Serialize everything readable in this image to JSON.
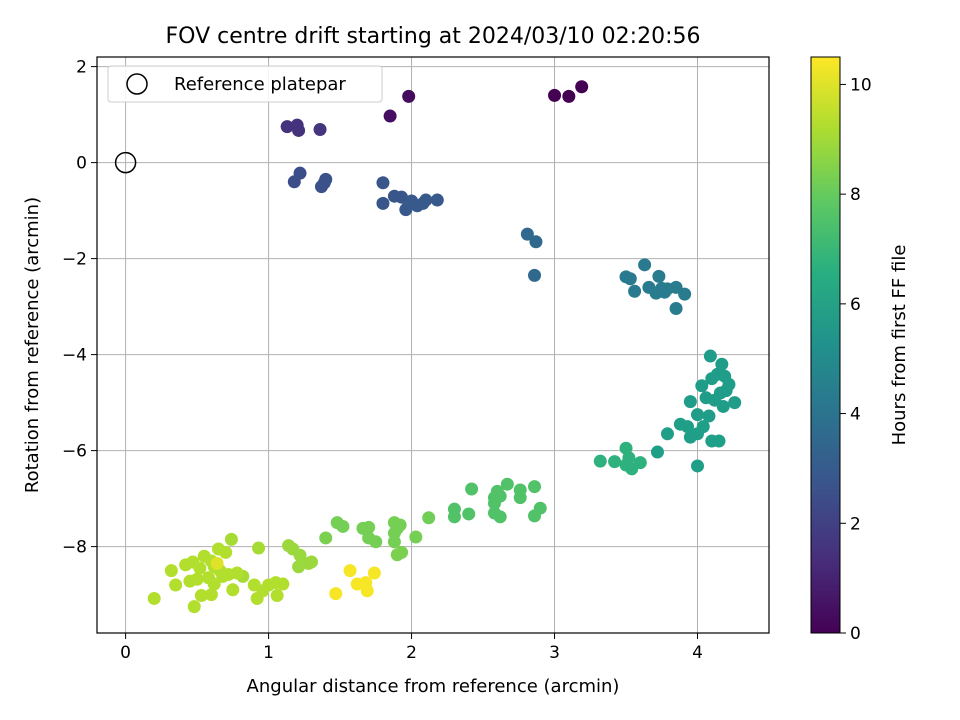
{
  "chart_data": {
    "type": "scatter",
    "title": "FOV centre drift starting at 2024/03/10 02:20:56",
    "xlabel": "Angular distance from reference (arcmin)",
    "ylabel": "Rotation from reference (arcmin)",
    "xlim": [
      -0.2,
      4.5
    ],
    "ylim": [
      -9.8,
      2.2
    ],
    "xticks": [
      0,
      1,
      2,
      3,
      4
    ],
    "yticks": [
      -8,
      -6,
      -4,
      -2,
      0,
      2
    ],
    "grid": true,
    "legend": {
      "position": "upper left",
      "entries": [
        "Reference platepar"
      ]
    },
    "reference_point": {
      "x": 0,
      "y": 0
    },
    "colorbar": {
      "label": "Hours from first FF file",
      "range": [
        0,
        10.5
      ],
      "ticks": [
        0,
        2,
        4,
        6,
        8,
        10
      ],
      "colormap": "viridis"
    },
    "points": [
      {
        "x": 1.98,
        "y": 1.38,
        "h": 0.3
      },
      {
        "x": 1.85,
        "y": 0.97,
        "h": 0.4
      },
      {
        "x": 3.0,
        "y": 1.4,
        "h": 0.0
      },
      {
        "x": 3.1,
        "y": 1.38,
        "h": 0.0
      },
      {
        "x": 3.19,
        "y": 1.58,
        "h": 0.0
      },
      {
        "x": 1.13,
        "y": 0.75,
        "h": 1.5
      },
      {
        "x": 1.2,
        "y": 0.78,
        "h": 1.5
      },
      {
        "x": 1.21,
        "y": 0.67,
        "h": 1.5
      },
      {
        "x": 1.36,
        "y": 0.69,
        "h": 1.6
      },
      {
        "x": 1.18,
        "y": -0.4,
        "h": 2.5
      },
      {
        "x": 1.22,
        "y": -0.22,
        "h": 2.5
      },
      {
        "x": 1.37,
        "y": -0.5,
        "h": 2.6
      },
      {
        "x": 1.39,
        "y": -0.42,
        "h": 2.6
      },
      {
        "x": 1.4,
        "y": -0.35,
        "h": 2.6
      },
      {
        "x": 1.8,
        "y": -0.42,
        "h": 2.8
      },
      {
        "x": 1.8,
        "y": -0.85,
        "h": 2.8
      },
      {
        "x": 1.88,
        "y": -0.7,
        "h": 2.8
      },
      {
        "x": 1.93,
        "y": -0.72,
        "h": 2.8
      },
      {
        "x": 1.96,
        "y": -0.98,
        "h": 2.9
      },
      {
        "x": 1.98,
        "y": -0.88,
        "h": 2.9
      },
      {
        "x": 2.0,
        "y": -0.8,
        "h": 2.9
      },
      {
        "x": 2.04,
        "y": -0.9,
        "h": 2.9
      },
      {
        "x": 2.08,
        "y": -0.85,
        "h": 2.9
      },
      {
        "x": 2.1,
        "y": -0.78,
        "h": 2.9
      },
      {
        "x": 2.18,
        "y": -0.78,
        "h": 2.9
      },
      {
        "x": 2.81,
        "y": -1.49,
        "h": 3.5
      },
      {
        "x": 2.87,
        "y": -1.65,
        "h": 3.5
      },
      {
        "x": 2.86,
        "y": -2.35,
        "h": 3.5
      },
      {
        "x": 3.5,
        "y": -2.38,
        "h": 4.3
      },
      {
        "x": 3.53,
        "y": -2.42,
        "h": 4.3
      },
      {
        "x": 3.56,
        "y": -2.68,
        "h": 4.3
      },
      {
        "x": 3.63,
        "y": -2.13,
        "h": 4.3
      },
      {
        "x": 3.66,
        "y": -2.6,
        "h": 4.3
      },
      {
        "x": 3.71,
        "y": -2.72,
        "h": 4.4
      },
      {
        "x": 3.73,
        "y": -2.37,
        "h": 4.4
      },
      {
        "x": 3.75,
        "y": -2.62,
        "h": 4.4
      },
      {
        "x": 3.79,
        "y": -2.63,
        "h": 4.4
      },
      {
        "x": 3.85,
        "y": -2.6,
        "h": 4.4
      },
      {
        "x": 3.85,
        "y": -3.04,
        "h": 4.4
      },
      {
        "x": 3.91,
        "y": -2.74,
        "h": 4.4
      },
      {
        "x": 3.77,
        "y": -2.7,
        "h": 4.4
      },
      {
        "x": 4.09,
        "y": -4.03,
        "h": 5.8
      },
      {
        "x": 4.17,
        "y": -4.2,
        "h": 5.8
      },
      {
        "x": 4.14,
        "y": -4.41,
        "h": 5.8
      },
      {
        "x": 4.19,
        "y": -4.45,
        "h": 5.8
      },
      {
        "x": 4.1,
        "y": -4.5,
        "h": 5.8
      },
      {
        "x": 4.22,
        "y": -4.62,
        "h": 5.8
      },
      {
        "x": 4.03,
        "y": -4.65,
        "h": 5.8
      },
      {
        "x": 4.16,
        "y": -4.8,
        "h": 5.8
      },
      {
        "x": 4.2,
        "y": -4.75,
        "h": 5.8
      },
      {
        "x": 4.06,
        "y": -4.9,
        "h": 5.8
      },
      {
        "x": 4.12,
        "y": -4.95,
        "h": 5.8
      },
      {
        "x": 4.26,
        "y": -5.0,
        "h": 5.8
      },
      {
        "x": 3.95,
        "y": -4.98,
        "h": 5.8
      },
      {
        "x": 4.18,
        "y": -5.08,
        "h": 5.8
      },
      {
        "x": 4.0,
        "y": -5.25,
        "h": 5.8
      },
      {
        "x": 4.08,
        "y": -5.28,
        "h": 5.8
      },
      {
        "x": 3.88,
        "y": -5.45,
        "h": 5.9
      },
      {
        "x": 3.93,
        "y": -5.5,
        "h": 5.9
      },
      {
        "x": 4.04,
        "y": -5.5,
        "h": 5.9
      },
      {
        "x": 3.95,
        "y": -5.72,
        "h": 5.9
      },
      {
        "x": 4.0,
        "y": -5.65,
        "h": 5.9
      },
      {
        "x": 4.1,
        "y": -5.8,
        "h": 5.9
      },
      {
        "x": 4.15,
        "y": -5.8,
        "h": 5.9
      },
      {
        "x": 3.79,
        "y": -5.65,
        "h": 5.9
      },
      {
        "x": 3.72,
        "y": -6.03,
        "h": 5.9
      },
      {
        "x": 4.0,
        "y": -6.32,
        "h": 5.9
      },
      {
        "x": 3.5,
        "y": -5.95,
        "h": 6.7
      },
      {
        "x": 3.52,
        "y": -6.15,
        "h": 6.7
      },
      {
        "x": 3.32,
        "y": -6.22,
        "h": 6.7
      },
      {
        "x": 3.42,
        "y": -6.23,
        "h": 6.7
      },
      {
        "x": 3.5,
        "y": -6.3,
        "h": 6.7
      },
      {
        "x": 3.54,
        "y": -6.38,
        "h": 6.7
      },
      {
        "x": 3.6,
        "y": -6.25,
        "h": 6.7
      },
      {
        "x": 2.42,
        "y": -6.8,
        "h": 7.6
      },
      {
        "x": 2.6,
        "y": -6.85,
        "h": 7.6
      },
      {
        "x": 2.67,
        "y": -6.7,
        "h": 7.6
      },
      {
        "x": 2.76,
        "y": -6.82,
        "h": 7.6
      },
      {
        "x": 2.86,
        "y": -6.75,
        "h": 7.6
      },
      {
        "x": 2.58,
        "y": -6.98,
        "h": 7.6
      },
      {
        "x": 2.62,
        "y": -6.95,
        "h": 7.6
      },
      {
        "x": 2.76,
        "y": -6.98,
        "h": 7.6
      },
      {
        "x": 2.58,
        "y": -7.1,
        "h": 7.6
      },
      {
        "x": 2.3,
        "y": -7.22,
        "h": 7.6
      },
      {
        "x": 2.3,
        "y": -7.38,
        "h": 7.6
      },
      {
        "x": 2.4,
        "y": -7.32,
        "h": 7.6
      },
      {
        "x": 2.58,
        "y": -7.3,
        "h": 7.6
      },
      {
        "x": 2.62,
        "y": -7.38,
        "h": 7.6
      },
      {
        "x": 2.86,
        "y": -7.36,
        "h": 7.6
      },
      {
        "x": 2.9,
        "y": -7.2,
        "h": 7.6
      },
      {
        "x": 2.12,
        "y": -7.4,
        "h": 8.2
      },
      {
        "x": 1.48,
        "y": -7.5,
        "h": 8.3
      },
      {
        "x": 1.52,
        "y": -7.58,
        "h": 8.3
      },
      {
        "x": 1.66,
        "y": -7.62,
        "h": 8.3
      },
      {
        "x": 1.7,
        "y": -7.6,
        "h": 8.3
      },
      {
        "x": 1.88,
        "y": -7.5,
        "h": 8.3
      },
      {
        "x": 1.9,
        "y": -7.62,
        "h": 8.3
      },
      {
        "x": 1.92,
        "y": -7.55,
        "h": 8.3
      },
      {
        "x": 1.88,
        "y": -7.72,
        "h": 8.3
      },
      {
        "x": 1.7,
        "y": -7.82,
        "h": 8.3
      },
      {
        "x": 1.75,
        "y": -7.9,
        "h": 8.3
      },
      {
        "x": 1.88,
        "y": -7.9,
        "h": 8.3
      },
      {
        "x": 2.03,
        "y": -7.8,
        "h": 8.3
      },
      {
        "x": 1.4,
        "y": -7.82,
        "h": 8.4
      },
      {
        "x": 1.9,
        "y": -8.17,
        "h": 8.4
      },
      {
        "x": 1.93,
        "y": -8.12,
        "h": 8.4
      },
      {
        "x": 1.14,
        "y": -7.98,
        "h": 8.9
      },
      {
        "x": 1.17,
        "y": -8.05,
        "h": 8.9
      },
      {
        "x": 1.22,
        "y": -8.18,
        "h": 8.9
      },
      {
        "x": 1.21,
        "y": -8.42,
        "h": 8.9
      },
      {
        "x": 1.28,
        "y": -8.35,
        "h": 8.9
      },
      {
        "x": 1.3,
        "y": -8.32,
        "h": 8.9
      },
      {
        "x": 0.93,
        "y": -8.03,
        "h": 9.1
      },
      {
        "x": 0.74,
        "y": -7.85,
        "h": 9.1
      },
      {
        "x": 0.82,
        "y": -8.62,
        "h": 9.1
      },
      {
        "x": 0.65,
        "y": -8.05,
        "h": 9.3
      },
      {
        "x": 0.7,
        "y": -8.12,
        "h": 9.3
      },
      {
        "x": 0.55,
        "y": -8.2,
        "h": 9.3
      },
      {
        "x": 0.47,
        "y": -8.32,
        "h": 9.3
      },
      {
        "x": 0.42,
        "y": -8.38,
        "h": 9.3
      },
      {
        "x": 0.6,
        "y": -8.3,
        "h": 9.3
      },
      {
        "x": 0.52,
        "y": -8.45,
        "h": 9.3
      },
      {
        "x": 0.62,
        "y": -8.42,
        "h": 9.3
      },
      {
        "x": 0.66,
        "y": -8.5,
        "h": 9.3
      },
      {
        "x": 0.72,
        "y": -8.58,
        "h": 9.3
      },
      {
        "x": 0.78,
        "y": -8.55,
        "h": 9.3
      },
      {
        "x": 0.32,
        "y": -8.5,
        "h": 9.3
      },
      {
        "x": 0.58,
        "y": -8.65,
        "h": 9.3
      },
      {
        "x": 0.5,
        "y": -8.68,
        "h": 9.3
      },
      {
        "x": 0.45,
        "y": -8.72,
        "h": 9.3
      },
      {
        "x": 0.35,
        "y": -8.8,
        "h": 9.3
      },
      {
        "x": 0.62,
        "y": -8.78,
        "h": 9.3
      },
      {
        "x": 0.68,
        "y": -8.62,
        "h": 9.3
      },
      {
        "x": 0.9,
        "y": -8.8,
        "h": 9.3
      },
      {
        "x": 0.96,
        "y": -8.92,
        "h": 9.3
      },
      {
        "x": 1.0,
        "y": -8.8,
        "h": 9.3
      },
      {
        "x": 1.05,
        "y": -8.75,
        "h": 9.3
      },
      {
        "x": 1.1,
        "y": -8.78,
        "h": 9.3
      },
      {
        "x": 0.75,
        "y": -8.9,
        "h": 9.3
      },
      {
        "x": 1.06,
        "y": -9.02,
        "h": 9.3
      },
      {
        "x": 0.92,
        "y": -9.08,
        "h": 9.3
      },
      {
        "x": 0.53,
        "y": -9.02,
        "h": 9.3
      },
      {
        "x": 0.6,
        "y": -9.0,
        "h": 9.3
      },
      {
        "x": 0.2,
        "y": -9.08,
        "h": 9.3
      },
      {
        "x": 0.48,
        "y": -9.25,
        "h": 9.3
      },
      {
        "x": 0.64,
        "y": -8.35,
        "h": 10.0
      },
      {
        "x": 1.57,
        "y": -8.5,
        "h": 10.4
      },
      {
        "x": 1.74,
        "y": -8.55,
        "h": 10.4
      },
      {
        "x": 1.62,
        "y": -8.78,
        "h": 10.4
      },
      {
        "x": 1.68,
        "y": -8.75,
        "h": 10.4
      },
      {
        "x": 1.69,
        "y": -8.92,
        "h": 10.4
      },
      {
        "x": 1.47,
        "y": -8.98,
        "h": 10.4
      }
    ]
  }
}
